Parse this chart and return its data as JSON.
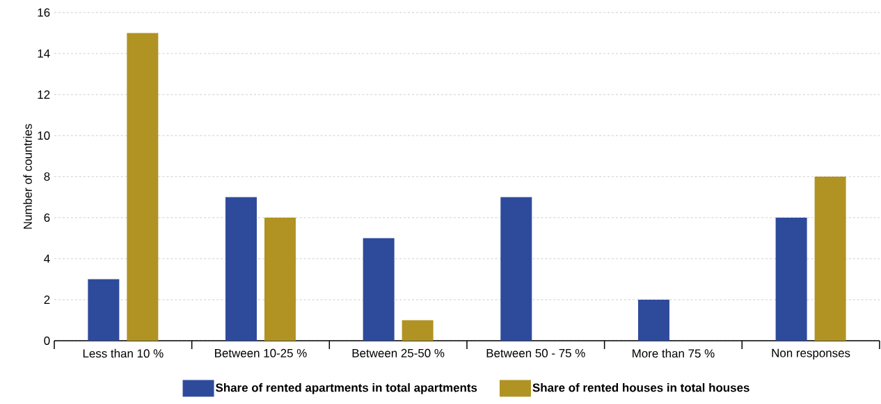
{
  "chart_data": {
    "type": "bar",
    "ylabel": "Number of countries",
    "categories": [
      "Less than 10 %",
      "Between 10-25 %",
      "Between 25-50 %",
      "Between 50 - 75 %",
      "More than 75 %",
      "Non responses"
    ],
    "series": [
      {
        "name": "Share of rented apartments in total apartments",
        "color": "#2e4a9b",
        "values": [
          3,
          7,
          5,
          7,
          2,
          6
        ]
      },
      {
        "name": "Share of rented houses in total houses",
        "color": "#b09322",
        "values": [
          15,
          6,
          1,
          0,
          0,
          8
        ]
      }
    ],
    "ylim": [
      0,
      16
    ],
    "yticks": [
      0,
      2,
      4,
      6,
      8,
      10,
      12,
      14,
      16
    ],
    "grid": "y",
    "legend": "bottom"
  }
}
